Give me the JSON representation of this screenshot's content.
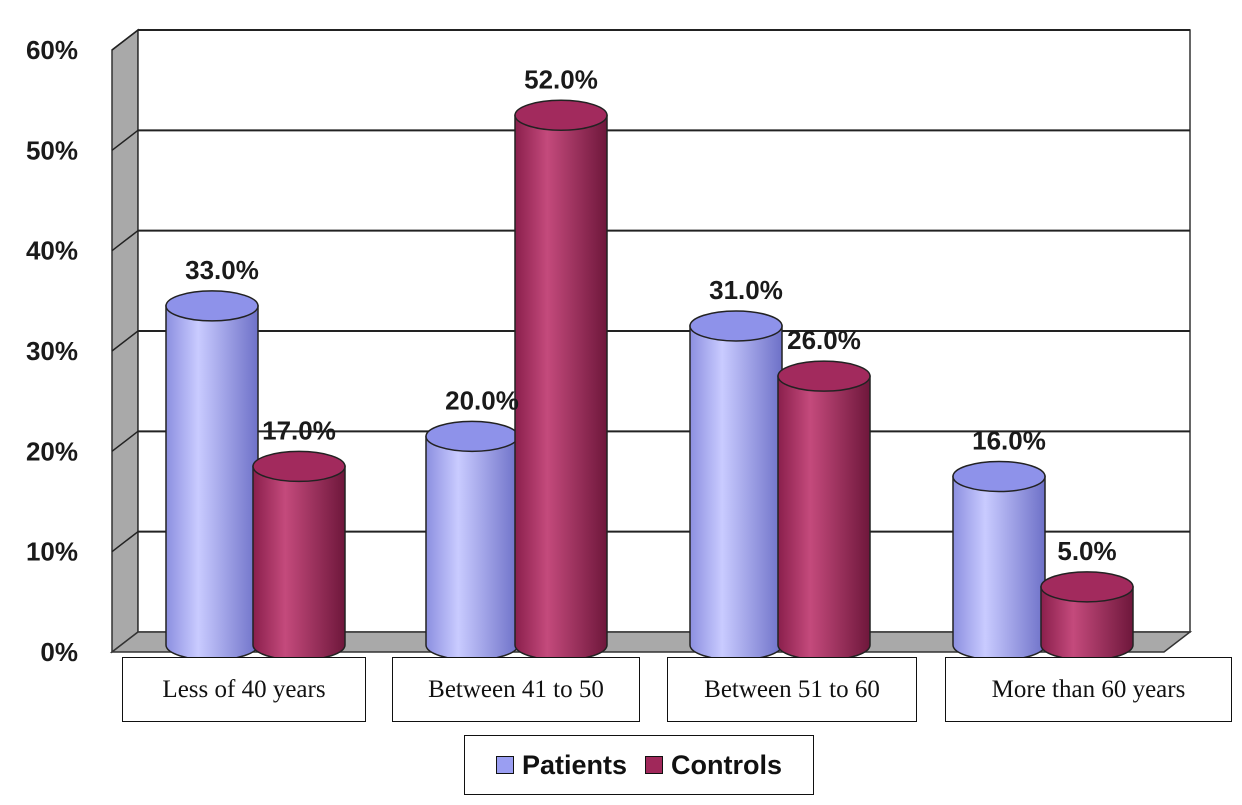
{
  "chart_data": {
    "type": "bar",
    "style": "3d-cylinder",
    "categories": [
      "Less of 40 years",
      "Between 41 to 50",
      "Between 51 to 60",
      "More than 60 years"
    ],
    "series": [
      {
        "name": "Patients",
        "color": "#9a9ef2",
        "values": [
          33.0,
          20.0,
          31.0,
          16.0
        ],
        "labels": [
          "33.0%",
          "20.0%",
          "31.0%",
          "16.0%"
        ]
      },
      {
        "name": "Controls",
        "color": "#a0285a",
        "values": [
          17.0,
          52.0,
          26.0,
          5.0
        ],
        "labels": [
          "17.0%",
          "52.0%",
          "26.0%",
          "5.0%"
        ]
      }
    ],
    "yticks": [
      "0%",
      "10%",
      "20%",
      "30%",
      "40%",
      "50%",
      "60%"
    ],
    "ylim": [
      0,
      60
    ],
    "grid": true,
    "legend_position": "bottom"
  }
}
